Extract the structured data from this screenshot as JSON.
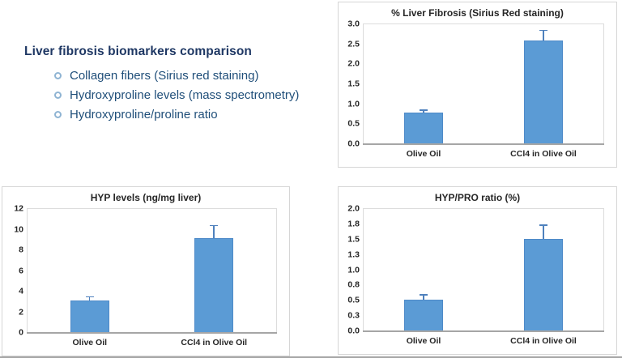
{
  "page": {
    "heading": "Liver fibrosis biomarkers comparison",
    "bullets": [
      "Collagen fibers (Sirius red staining)",
      "Hydroxyproline levels (mass spectrometry)",
      "Hydroxyproline/proline ratio"
    ]
  },
  "colors": {
    "heading_text": "#1f3864",
    "bullet_text": "#1f4e79",
    "bullet_marker": "#8fb4d3",
    "bar_fill": "#5b9bd5",
    "bar_border": "#4e8ac8",
    "error_bar": "#4f81bd",
    "axis_line": "#a6a6a6",
    "chart_border": "#d6d6d6"
  },
  "chart_data": [
    {
      "type": "bar",
      "title": "% Liver Fibrosis (Sirius Red staining)",
      "categories": [
        "Olive Oil",
        "CCl4 in Olive Oil"
      ],
      "values": [
        0.8,
        2.6
      ],
      "errors": [
        0.06,
        0.25
      ],
      "xlabel": "",
      "ylabel": "",
      "ylim": [
        0,
        3.0
      ],
      "yticks": [
        0,
        0.5,
        1.0,
        1.5,
        2.0,
        2.5,
        3.0
      ],
      "ytick_labels": [
        "0.0",
        "0.5",
        "1.0",
        "1.5",
        "2.0",
        "2.5",
        "3.0"
      ],
      "grid": false,
      "legend": "none",
      "error_bar_direction": "plus"
    },
    {
      "type": "bar",
      "title": "HYP levels (ng/mg liver)",
      "categories": [
        "Olive Oil",
        "CCl4 in Olive Oil"
      ],
      "values": [
        3.1,
        9.2
      ],
      "errors": [
        0.4,
        1.2
      ],
      "xlabel": "",
      "ylabel": "",
      "ylim": [
        0,
        12
      ],
      "yticks": [
        0,
        2,
        4,
        6,
        8,
        10,
        12
      ],
      "ytick_labels": [
        "0",
        "2",
        "4",
        "6",
        "8",
        "10",
        "12"
      ],
      "grid": false,
      "legend": "none",
      "error_bar_direction": "plus"
    },
    {
      "type": "bar",
      "title": "HYP/PRO ratio (%)",
      "categories": [
        "Olive Oil",
        "CCl4 in Olive Oil"
      ],
      "values": [
        0.52,
        1.51
      ],
      "errors": [
        0.08,
        0.23
      ],
      "xlabel": "",
      "ylabel": "",
      "ylim": [
        0,
        2.0
      ],
      "yticks": [
        0,
        0.25,
        0.5,
        0.75,
        1.0,
        1.25,
        1.5,
        1.75,
        2.0
      ],
      "ytick_labels": [
        "0.0",
        "0.3",
        "0.5",
        "0.8",
        "1.0",
        "1.3",
        "1.5",
        "1.8",
        "2.0"
      ],
      "grid": false,
      "legend": "none",
      "error_bar_direction": "plus"
    }
  ]
}
